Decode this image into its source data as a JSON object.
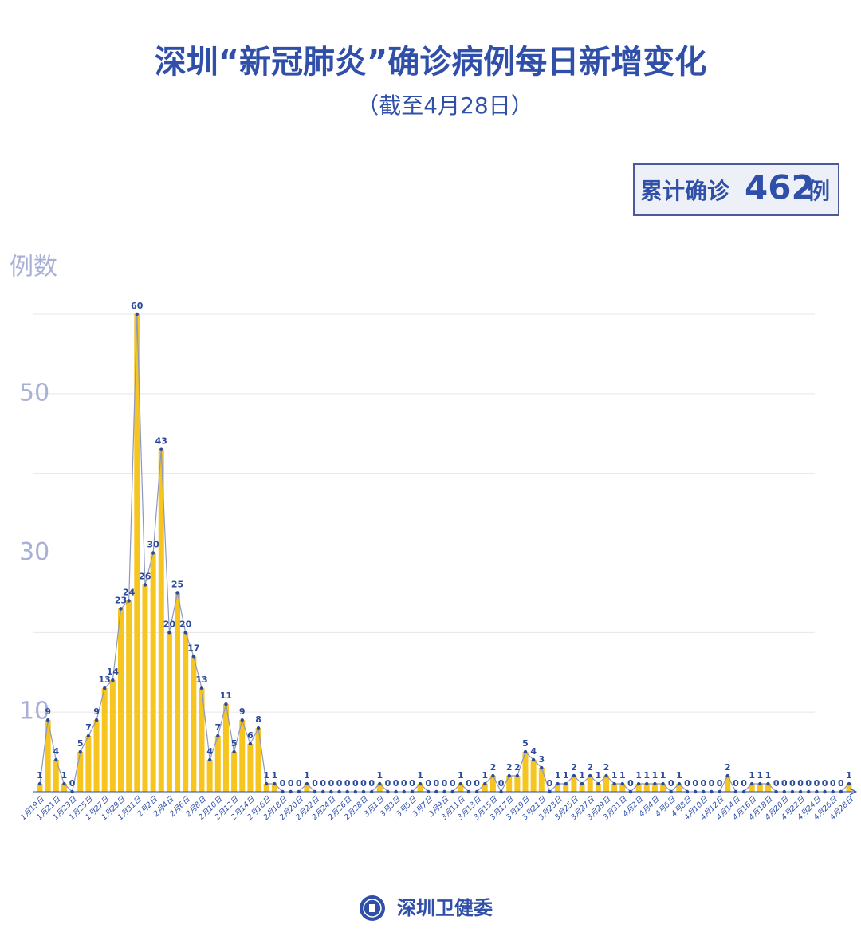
{
  "chart_data": {
    "type": "bar-line",
    "title": "深圳“新冠肺炎”确诊病例每日新增变化",
    "subtitle": "（截至4月28日）",
    "y_label": "例数",
    "total_box": {
      "prefix": "累计确诊",
      "value": 462,
      "suffix": "例"
    },
    "source": "深圳卫健委",
    "categories": [
      "1月19日",
      null,
      "1月21日",
      null,
      "1月23日",
      null,
      "1月25日",
      null,
      "1月27日",
      null,
      "1月29日",
      null,
      "1月31日",
      null,
      "2月2日",
      null,
      "2月4日",
      null,
      "2月6日",
      null,
      "2月8日",
      null,
      "2月10日",
      null,
      "2月12日",
      null,
      "2月14日",
      null,
      "2月16日",
      null,
      "2月18日",
      null,
      "2月20日",
      null,
      "2月22日",
      null,
      "2月24日",
      null,
      "2月26日",
      null,
      "2月28日",
      null,
      "3月1日",
      null,
      "3月3日",
      null,
      "3月5日",
      null,
      "3月7日",
      null,
      "3月9日",
      null,
      "3月11日",
      null,
      "3月13日",
      null,
      "3月15日",
      null,
      "3月17日",
      null,
      "3月19日",
      null,
      "3月21日",
      null,
      "3月23日",
      null,
      "3月25日",
      null,
      "3月27日",
      null,
      "3月29日",
      null,
      "3月31日",
      null,
      "4月2日",
      null,
      "4月4日",
      null,
      "4月6日",
      null,
      "4月8日",
      null,
      "4月10日",
      null,
      "4月12日",
      null,
      "4月14日",
      null,
      "4月16日",
      null,
      "4月18日",
      null,
      "4月20日",
      null,
      "4月22日",
      null,
      "4月24日",
      null,
      "4月26日",
      null,
      "4月28日"
    ],
    "values": [
      1,
      9,
      4,
      1,
      0,
      5,
      7,
      9,
      13,
      14,
      23,
      24,
      60,
      26,
      30,
      43,
      20,
      25,
      20,
      17,
      13,
      4,
      7,
      11,
      5,
      9,
      6,
      8,
      1,
      1,
      0,
      0,
      0,
      1,
      0,
      0,
      0,
      0,
      0,
      0,
      0,
      0,
      1,
      0,
      0,
      0,
      0,
      1,
      0,
      0,
      0,
      0,
      1,
      0,
      0,
      1,
      2,
      0,
      2,
      2,
      5,
      4,
      3,
      0,
      1,
      1,
      2,
      1,
      2,
      1,
      2,
      1,
      1,
      0,
      1,
      1,
      1,
      1,
      0,
      1,
      0,
      0,
      0,
      0,
      0,
      2,
      0,
      0,
      1,
      1,
      1,
      0,
      0,
      0,
      0,
      0,
      0,
      0,
      0,
      0,
      1
    ],
    "bar_color": "#f6c51f",
    "line_color": "#8e98bd",
    "point_color": "#2c4a9c",
    "ylim": [
      0,
      60
    ],
    "yticks": [
      10,
      30,
      50
    ],
    "grid_values": [
      20,
      40,
      60
    ],
    "grid": true
  }
}
